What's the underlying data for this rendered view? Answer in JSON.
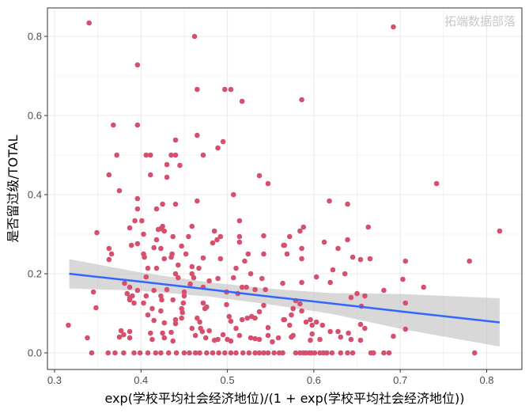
{
  "chart_data": {
    "type": "scatter",
    "title": "",
    "xlabel": "exp(学校平均社会经济地位)/(1 + exp(学校平均社会经济地位))",
    "ylabel": "是否留过级/TOTAL",
    "xlim": [
      0.2918,
      0.8407
    ],
    "ylim": [
      -0.042,
      0.872
    ],
    "xticks": [
      0.3,
      0.4,
      0.5,
      0.6,
      0.7,
      0.8
    ],
    "xtick_labels": [
      "0.3",
      "0.4",
      "0.5",
      "0.6",
      "0.7",
      "0.8"
    ],
    "yticks": [
      0.0,
      0.2,
      0.4,
      0.6,
      0.8
    ],
    "ytick_labels": [
      "0.0",
      "0.2",
      "0.4",
      "0.6",
      "0.8"
    ],
    "grid": true,
    "colors": {
      "points": "#D6506E",
      "smooth_line": "#3366FF",
      "ci_band": "#BEBEBE",
      "grid": "#EBEBEB",
      "border": "#333333"
    },
    "points": [
      [
        0.34,
        0.834
      ],
      [
        0.462,
        0.8
      ],
      [
        0.396,
        0.728
      ],
      [
        0.465,
        0.666
      ],
      [
        0.497,
        0.666
      ],
      [
        0.504,
        0.666
      ],
      [
        0.517,
        0.636
      ],
      [
        0.368,
        0.576
      ],
      [
        0.396,
        0.576
      ],
      [
        0.44,
        0.538
      ],
      [
        0.465,
        0.55
      ],
      [
        0.495,
        0.534
      ],
      [
        0.489,
        0.518
      ],
      [
        0.372,
        0.5
      ],
      [
        0.406,
        0.5
      ],
      [
        0.411,
        0.5
      ],
      [
        0.435,
        0.5
      ],
      [
        0.44,
        0.5
      ],
      [
        0.472,
        0.5
      ],
      [
        0.43,
        0.476
      ],
      [
        0.445,
        0.474
      ],
      [
        0.363,
        0.45
      ],
      [
        0.411,
        0.45
      ],
      [
        0.43,
        0.444
      ],
      [
        0.537,
        0.448
      ],
      [
        0.547,
        0.428
      ],
      [
        0.375,
        0.41
      ],
      [
        0.507,
        0.4
      ],
      [
        0.586,
        0.64
      ],
      [
        0.692,
        0.824
      ],
      [
        0.742,
        0.428
      ],
      [
        0.396,
        0.39
      ],
      [
        0.396,
        0.364
      ],
      [
        0.418,
        0.364
      ],
      [
        0.425,
        0.376
      ],
      [
        0.44,
        0.376
      ],
      [
        0.465,
        0.384
      ],
      [
        0.349,
        0.304
      ],
      [
        0.387,
        0.316
      ],
      [
        0.393,
        0.334
      ],
      [
        0.401,
        0.334
      ],
      [
        0.403,
        0.3
      ],
      [
        0.389,
        0.272
      ],
      [
        0.396,
        0.276
      ],
      [
        0.363,
        0.264
      ],
      [
        0.366,
        0.25
      ],
      [
        0.363,
        0.236
      ],
      [
        0.403,
        0.25
      ],
      [
        0.404,
        0.242
      ],
      [
        0.415,
        0.266
      ],
      [
        0.423,
        0.264
      ],
      [
        0.418,
        0.286
      ],
      [
        0.42,
        0.312
      ],
      [
        0.423,
        0.314
      ],
      [
        0.425,
        0.32
      ],
      [
        0.427,
        0.308
      ],
      [
        0.437,
        0.294
      ],
      [
        0.455,
        0.294
      ],
      [
        0.459,
        0.32
      ],
      [
        0.447,
        0.27
      ],
      [
        0.452,
        0.25
      ],
      [
        0.436,
        0.25
      ],
      [
        0.435,
        0.242
      ],
      [
        0.427,
        0.238
      ],
      [
        0.472,
        0.24
      ],
      [
        0.485,
        0.308
      ],
      [
        0.483,
        0.278
      ],
      [
        0.488,
        0.286
      ],
      [
        0.492,
        0.294
      ],
      [
        0.514,
        0.334
      ],
      [
        0.514,
        0.294
      ],
      [
        0.514,
        0.28
      ],
      [
        0.524,
        0.25
      ],
      [
        0.52,
        0.232
      ],
      [
        0.542,
        0.296
      ],
      [
        0.542,
        0.25
      ],
      [
        0.565,
        0.272
      ],
      [
        0.408,
        0.214
      ],
      [
        0.418,
        0.214
      ],
      [
        0.443,
        0.222
      ],
      [
        0.459,
        0.218
      ],
      [
        0.467,
        0.214
      ],
      [
        0.492,
        0.238
      ],
      [
        0.51,
        0.214
      ],
      [
        0.527,
        0.2
      ],
      [
        0.44,
        0.2
      ],
      [
        0.443,
        0.19
      ],
      [
        0.459,
        0.2
      ],
      [
        0.461,
        0.19
      ],
      [
        0.489,
        0.188
      ],
      [
        0.479,
        0.182
      ],
      [
        0.507,
        0.19
      ],
      [
        0.54,
        0.188
      ],
      [
        0.564,
        0.176
      ],
      [
        0.406,
        0.192
      ],
      [
        0.381,
        0.176
      ],
      [
        0.387,
        0.166
      ],
      [
        0.396,
        0.158
      ],
      [
        0.415,
        0.158
      ],
      [
        0.43,
        0.16
      ],
      [
        0.457,
        0.174
      ],
      [
        0.472,
        0.166
      ],
      [
        0.499,
        0.154
      ],
      [
        0.512,
        0.15
      ],
      [
        0.517,
        0.166
      ],
      [
        0.522,
        0.166
      ],
      [
        0.532,
        0.16
      ],
      [
        0.544,
        0.16
      ],
      [
        0.345,
        0.154
      ],
      [
        0.348,
        0.114
      ],
      [
        0.384,
        0.15
      ],
      [
        0.387,
        0.14
      ],
      [
        0.39,
        0.144
      ],
      [
        0.387,
        0.134
      ],
      [
        0.392,
        0.126
      ],
      [
        0.406,
        0.144
      ],
      [
        0.403,
        0.126
      ],
      [
        0.423,
        0.144
      ],
      [
        0.424,
        0.134
      ],
      [
        0.437,
        0.134
      ],
      [
        0.45,
        0.154
      ],
      [
        0.45,
        0.144
      ],
      [
        0.449,
        0.126
      ],
      [
        0.447,
        0.112
      ],
      [
        0.448,
        0.102
      ],
      [
        0.447,
        0.088
      ],
      [
        0.413,
        0.112
      ],
      [
        0.423,
        0.106
      ],
      [
        0.408,
        0.096
      ],
      [
        0.415,
        0.082
      ],
      [
        0.427,
        0.076
      ],
      [
        0.44,
        0.084
      ],
      [
        0.44,
        0.074
      ],
      [
        0.465,
        0.088
      ],
      [
        0.468,
        0.078
      ],
      [
        0.472,
        0.126
      ],
      [
        0.476,
        0.116
      ],
      [
        0.474,
        0.112
      ],
      [
        0.499,
        0.122
      ],
      [
        0.502,
        0.092
      ],
      [
        0.504,
        0.08
      ],
      [
        0.517,
        0.084
      ],
      [
        0.523,
        0.088
      ],
      [
        0.528,
        0.092
      ],
      [
        0.532,
        0.088
      ],
      [
        0.537,
        0.104
      ],
      [
        0.542,
        0.12
      ],
      [
        0.565,
        0.084
      ],
      [
        0.316,
        0.07
      ],
      [
        0.338,
        0.038
      ],
      [
        0.377,
        0.056
      ],
      [
        0.375,
        0.04
      ],
      [
        0.387,
        0.054
      ],
      [
        0.387,
        0.038
      ],
      [
        0.38,
        0.046
      ],
      [
        0.411,
        0.05
      ],
      [
        0.413,
        0.034
      ],
      [
        0.425,
        0.05
      ],
      [
        0.427,
        0.038
      ],
      [
        0.435,
        0.052
      ],
      [
        0.437,
        0.03
      ],
      [
        0.459,
        0.062
      ],
      [
        0.463,
        0.044
      ],
      [
        0.469,
        0.062
      ],
      [
        0.471,
        0.054
      ],
      [
        0.475,
        0.038
      ],
      [
        0.479,
        0.056
      ],
      [
        0.485,
        0.032
      ],
      [
        0.489,
        0.034
      ],
      [
        0.495,
        0.046
      ],
      [
        0.5,
        0.034
      ],
      [
        0.504,
        0.03
      ],
      [
        0.51,
        0.062
      ],
      [
        0.514,
        0.044
      ],
      [
        0.527,
        0.038
      ],
      [
        0.532,
        0.036
      ],
      [
        0.537,
        0.034
      ],
      [
        0.547,
        0.064
      ],
      [
        0.547,
        0.044
      ],
      [
        0.552,
        0.028
      ],
      [
        0.559,
        0.038
      ],
      [
        0.618,
        0.384
      ],
      [
        0.639,
        0.376
      ],
      [
        0.663,
        0.318
      ],
      [
        0.584,
        0.308
      ],
      [
        0.588,
        0.318
      ],
      [
        0.572,
        0.294
      ],
      [
        0.566,
        0.272
      ],
      [
        0.569,
        0.25
      ],
      [
        0.586,
        0.264
      ],
      [
        0.586,
        0.238
      ],
      [
        0.612,
        0.28
      ],
      [
        0.628,
        0.264
      ],
      [
        0.639,
        0.286
      ],
      [
        0.645,
        0.242
      ],
      [
        0.654,
        0.236
      ],
      [
        0.665,
        0.238
      ],
      [
        0.706,
        0.232
      ],
      [
        0.78,
        0.232
      ],
      [
        0.815,
        0.308
      ],
      [
        0.622,
        0.21
      ],
      [
        0.636,
        0.2
      ],
      [
        0.603,
        0.192
      ],
      [
        0.619,
        0.178
      ],
      [
        0.586,
        0.178
      ],
      [
        0.703,
        0.186
      ],
      [
        0.727,
        0.166
      ],
      [
        0.681,
        0.158
      ],
      [
        0.65,
        0.15
      ],
      [
        0.659,
        0.144
      ],
      [
        0.643,
        0.14
      ],
      [
        0.655,
        0.118
      ],
      [
        0.706,
        0.126
      ],
      [
        0.706,
        0.06
      ],
      [
        0.692,
        0.042
      ],
      [
        0.654,
        0.072
      ],
      [
        0.659,
        0.062
      ],
      [
        0.654,
        0.032
      ],
      [
        0.643,
        0.034
      ],
      [
        0.64,
        0.05
      ],
      [
        0.628,
        0.054
      ],
      [
        0.631,
        0.04
      ],
      [
        0.619,
        0.054
      ],
      [
        0.61,
        0.07
      ],
      [
        0.603,
        0.078
      ],
      [
        0.598,
        0.07
      ],
      [
        0.596,
        0.084
      ],
      [
        0.591,
        0.078
      ],
      [
        0.598,
        0.048
      ],
      [
        0.596,
        0.032
      ],
      [
        0.607,
        0.034
      ],
      [
        0.576,
        0.044
      ],
      [
        0.574,
        0.04
      ],
      [
        0.572,
        0.07
      ],
      [
        0.566,
        0.084
      ],
      [
        0.574,
        0.096
      ],
      [
        0.576,
        0.112
      ],
      [
        0.586,
        0.106
      ],
      [
        0.584,
        0.124
      ],
      [
        0.579,
        0.132
      ],
      [
        0.343,
        0
      ],
      [
        0.362,
        0
      ],
      [
        0.37,
        0
      ],
      [
        0.38,
        0
      ],
      [
        0.392,
        0
      ],
      [
        0.399,
        0
      ],
      [
        0.408,
        0
      ],
      [
        0.417,
        0
      ],
      [
        0.423,
        0
      ],
      [
        0.432,
        0
      ],
      [
        0.441,
        0
      ],
      [
        0.45,
        0
      ],
      [
        0.456,
        0
      ],
      [
        0.463,
        0
      ],
      [
        0.468,
        0
      ],
      [
        0.476,
        0
      ],
      [
        0.483,
        0
      ],
      [
        0.49,
        0
      ],
      [
        0.497,
        0
      ],
      [
        0.504,
        0
      ],
      [
        0.51,
        0
      ],
      [
        0.518,
        0
      ],
      [
        0.525,
        0
      ],
      [
        0.532,
        0
      ],
      [
        0.537,
        0
      ],
      [
        0.542,
        0
      ],
      [
        0.547,
        0
      ],
      [
        0.554,
        0
      ],
      [
        0.56,
        0
      ],
      [
        0.564,
        0
      ],
      [
        0.579,
        0
      ],
      [
        0.584,
        0
      ],
      [
        0.588,
        0
      ],
      [
        0.591,
        0
      ],
      [
        0.595,
        0
      ],
      [
        0.597,
        0
      ],
      [
        0.601,
        0
      ],
      [
        0.607,
        0
      ],
      [
        0.611,
        0
      ],
      [
        0.615,
        0
      ],
      [
        0.621,
        0
      ],
      [
        0.631,
        0
      ],
      [
        0.639,
        0
      ],
      [
        0.645,
        0
      ],
      [
        0.666,
        0
      ],
      [
        0.669,
        0
      ],
      [
        0.681,
        0
      ],
      [
        0.687,
        0
      ],
      [
        0.786,
        0
      ]
    ],
    "smooth": {
      "method": "linear",
      "x": [
        0.317,
        0.4,
        0.48,
        0.55,
        0.62,
        0.7,
        0.815
      ],
      "y": [
        0.2,
        0.18,
        0.16,
        0.142,
        0.125,
        0.105,
        0.077
      ],
      "ci_lower": [
        0.163,
        0.157,
        0.142,
        0.122,
        0.099,
        0.061,
        0.016
      ],
      "ci_upper": [
        0.237,
        0.203,
        0.178,
        0.162,
        0.151,
        0.149,
        0.138
      ]
    }
  },
  "watermark": "拓端数据部落"
}
